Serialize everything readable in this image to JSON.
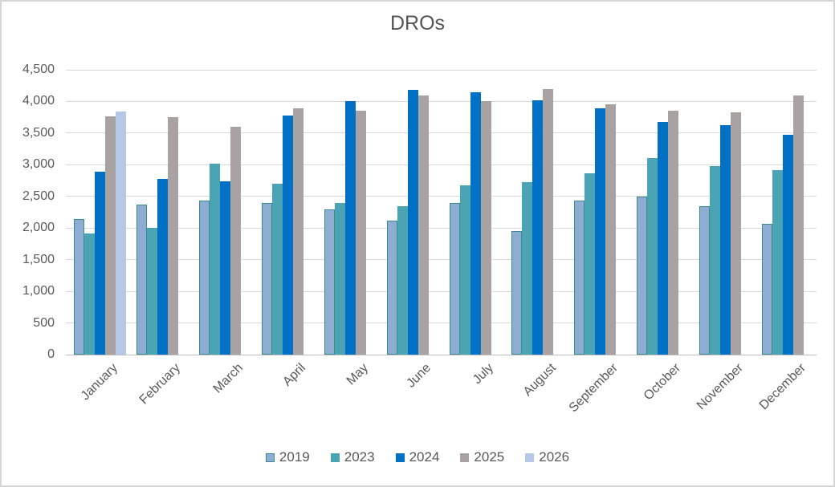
{
  "chart_data": {
    "type": "bar",
    "title": "DROs",
    "categories": [
      "January",
      "February",
      "March",
      "April",
      "May",
      "June",
      "July",
      "August",
      "September",
      "October",
      "November",
      "December"
    ],
    "series": [
      {
        "name": "2019",
        "color": "#8EADD2",
        "border_color": "#3C8A8C",
        "values": [
          2140,
          2370,
          2430,
          2390,
          2290,
          2120,
          2390,
          1950,
          2430,
          2500,
          2350,
          2070
        ]
      },
      {
        "name": "2023",
        "color": "#4BA4B3",
        "values": [
          1910,
          2000,
          3020,
          2700,
          2390,
          2350,
          2680,
          2720,
          2870,
          3100,
          2980,
          2910
        ]
      },
      {
        "name": "2024",
        "color": "#0071C5",
        "values": [
          2890,
          2770,
          2740,
          3780,
          4000,
          4180,
          4150,
          4020,
          3890,
          3670,
          3620,
          3470
        ]
      },
      {
        "name": "2025",
        "color": "#A8A2A3",
        "values": [
          3760,
          3750,
          3600,
          3890,
          3860,
          4100,
          4000,
          4190,
          3950,
          3850,
          3830,
          4100
        ]
      },
      {
        "name": "2026",
        "color": "#B5C9E6",
        "values": [
          3840,
          null,
          null,
          null,
          null,
          null,
          null,
          null,
          null,
          null,
          null,
          null
        ]
      }
    ],
    "ylim": [
      0,
      4500
    ],
    "ytick_step": 500,
    "y_tick_labels": [
      "0",
      "500",
      "1,000",
      "1,500",
      "2,000",
      "2,500",
      "3,000",
      "3,500",
      "4,000",
      "4,500"
    ],
    "grid": true,
    "legend_position": "bottom",
    "style": {
      "text_color": "#595959",
      "gridline_color": "#D9D9D9",
      "axisline_color": "#BFBFBF",
      "background": "#FFFFFF"
    }
  }
}
